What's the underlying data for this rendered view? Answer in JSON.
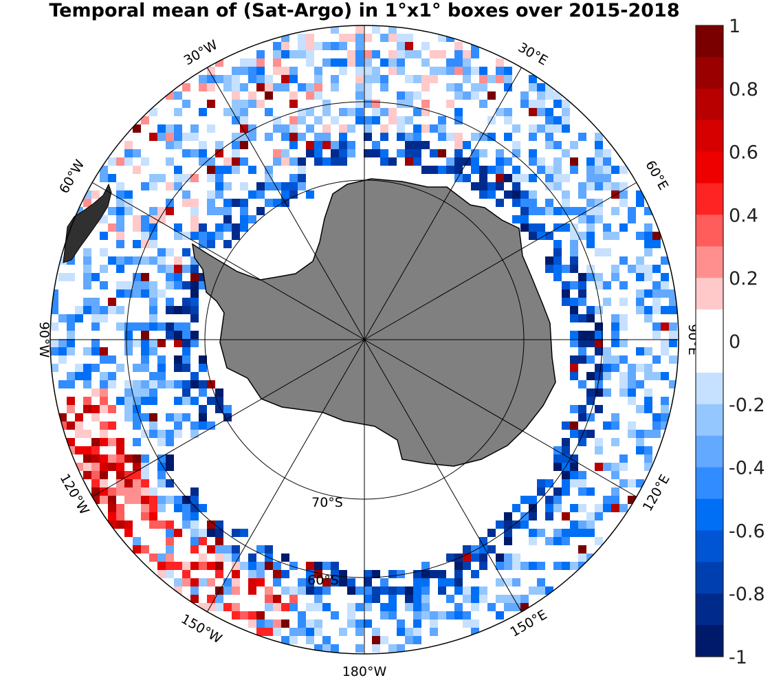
{
  "title": "Temporal mean of (Sat-Argo) in 1°x1° boxes over 2015-2018",
  "colors": {
    "land_antarctica": "#808080",
    "land_south_america": "#303030",
    "coast": "#000000",
    "grid": "#000000",
    "background": "#ffffff"
  },
  "colorbar": {
    "range": [
      -1,
      1
    ],
    "tick_labels": [
      "1",
      "0.8",
      "0.6",
      "0.4",
      "0.2",
      "0",
      "-0.2",
      "-0.4",
      "-0.6",
      "-0.8",
      "-1"
    ],
    "colors_top_to_bottom": [
      "#7a0000",
      "#9a0000",
      "#b80000",
      "#d60000",
      "#ef0000",
      "#ff2424",
      "#ff5c5c",
      "#ff8f8f",
      "#ffc9c9",
      "#ffffff",
      "#ffffff",
      "#c6e0ff",
      "#95c7ff",
      "#62a9ff",
      "#318cff",
      "#006ff5",
      "#0055d4",
      "#003fb0",
      "#002b8c",
      "#001a6b"
    ]
  },
  "map": {
    "projection": "south-polar-stereographic",
    "lat_circle_labels": [
      "70°S",
      "60°S"
    ],
    "meridian_labels": [
      "180°W",
      "150°W",
      "120°W",
      "90°W",
      "60°W",
      "30°W",
      "30°E",
      "60°E",
      "90°E",
      "120°E",
      "150°E"
    ]
  }
}
